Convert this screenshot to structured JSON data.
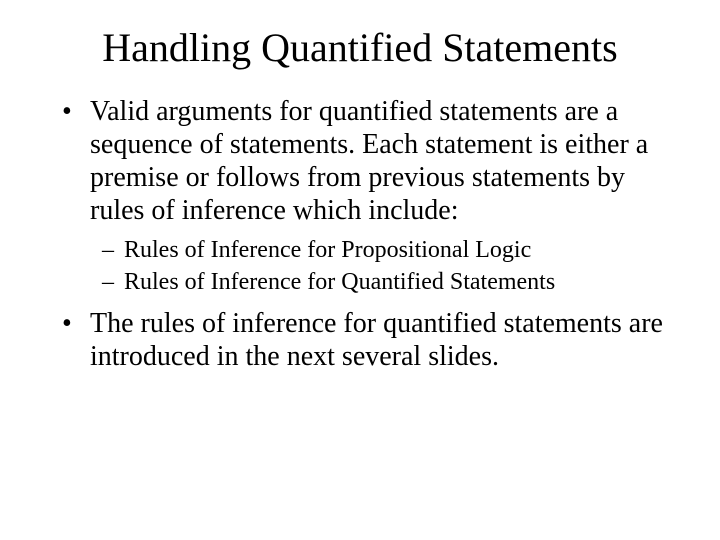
{
  "title": "Handling Quantified Statements",
  "bullets": [
    {
      "text": "Valid arguments for quantified statements are a sequence of statements. Each statement is either a premise or follows from previous statements by  rules of inference which include:",
      "sub": [
        "Rules of Inference for Propositional Logic",
        "Rules of Inference for Quantified Statements"
      ]
    },
    {
      "text": "The rules of inference for quantified statements are introduced in the next several slides.",
      "sub": []
    }
  ]
}
